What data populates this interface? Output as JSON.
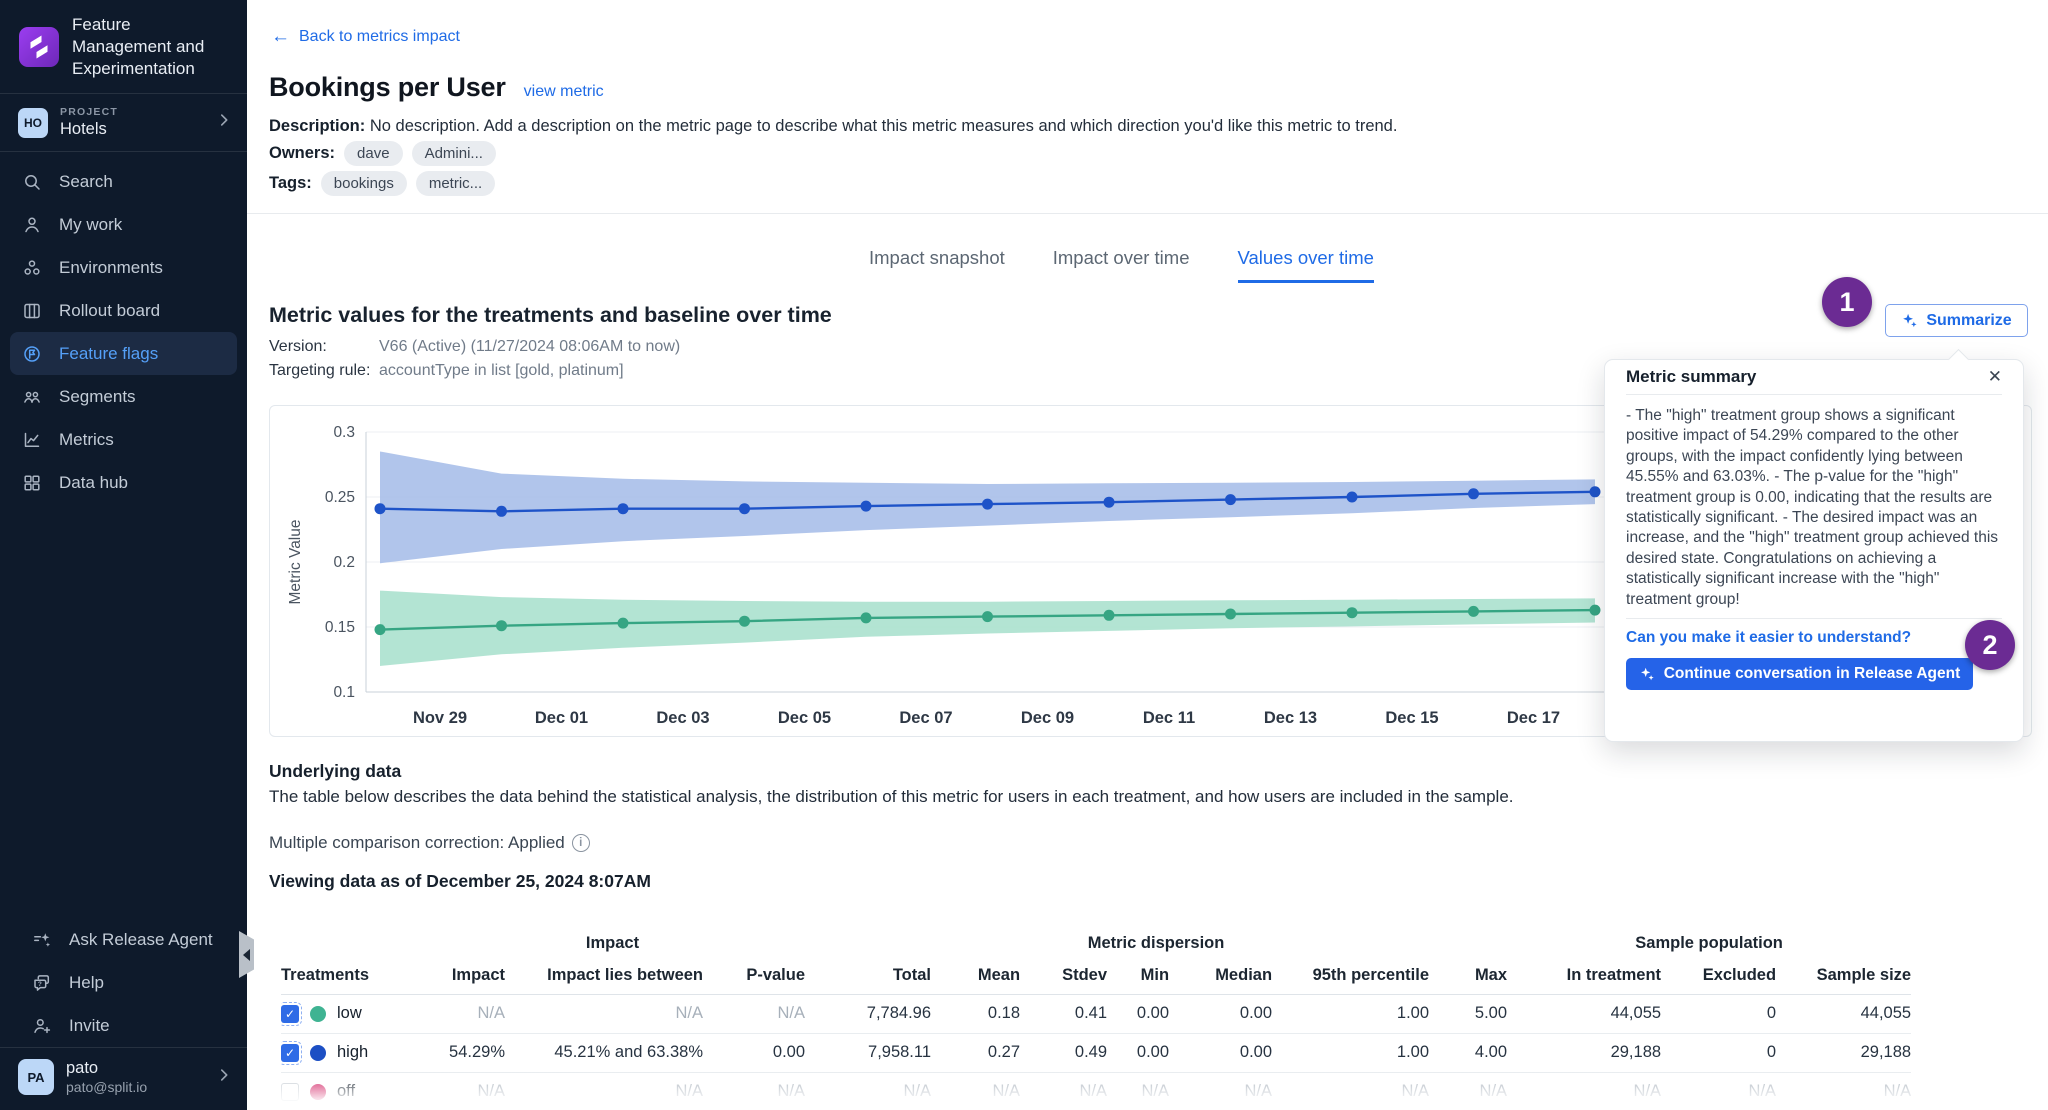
{
  "sidebar": {
    "app_title": "Feature Management and Experimentation",
    "project_label": "PROJECT",
    "project_name": "Hotels",
    "project_badge": "HO",
    "nav": [
      {
        "id": "search",
        "label": "Search",
        "icon": "search",
        "active": false
      },
      {
        "id": "my-work",
        "label": "My work",
        "icon": "my-work",
        "active": false
      },
      {
        "id": "environments",
        "label": "Environments",
        "icon": "environments",
        "active": false
      },
      {
        "id": "rollout-board",
        "label": "Rollout board",
        "icon": "rollout-board",
        "active": false
      },
      {
        "id": "feature-flags",
        "label": "Feature flags",
        "icon": "feature-flags",
        "active": true
      },
      {
        "id": "segments",
        "label": "Segments",
        "icon": "segments",
        "active": false
      },
      {
        "id": "metrics",
        "label": "Metrics",
        "icon": "metrics",
        "active": false
      },
      {
        "id": "data-hub",
        "label": "Data hub",
        "icon": "data-hub",
        "active": false
      }
    ],
    "footer_nav": [
      {
        "id": "ask-release-agent",
        "label": "Ask Release Agent",
        "icon": "ask-agent"
      },
      {
        "id": "help",
        "label": "Help",
        "icon": "help"
      },
      {
        "id": "invite",
        "label": "Invite",
        "icon": "invite"
      }
    ],
    "user": {
      "name": "pato",
      "email": "pato@split.io",
      "initials": "PA"
    }
  },
  "header": {
    "back_link": "Back to metrics impact",
    "title": "Bookings per User",
    "view_metric_link": "view metric",
    "description_label": "Description:",
    "description": "No description. Add a description on the metric page to describe what this metric measures and which direction you'd like this metric to trend.",
    "owners_label": "Owners:",
    "owners": [
      "dave",
      "Admini..."
    ],
    "tags_label": "Tags:",
    "tags": [
      "bookings",
      "metric..."
    ]
  },
  "tabs": [
    {
      "label": "Impact snapshot",
      "active": false
    },
    {
      "label": "Impact over time",
      "active": false
    },
    {
      "label": "Values over time",
      "active": true
    }
  ],
  "section": {
    "title": "Metric values for the treatments and baseline over time",
    "version_label": "Version:",
    "version_value": "V66 (Active) (11/27/2024 08:06AM to now)",
    "targeting_label": "Targeting rule:",
    "targeting_value": "accountType in list [gold, platinum]",
    "summarize_label": "Summarize"
  },
  "annotations": {
    "step1": "1",
    "step2": "2"
  },
  "chart_data": {
    "type": "line",
    "title": "Metric values for the treatments and baseline over time",
    "xlabel": "",
    "ylabel": "Metric Value",
    "ylim": [
      0.1,
      0.3
    ],
    "y_ticks": [
      0.3,
      0.25,
      0.2,
      0.15,
      0.1
    ],
    "x_tick_labels": [
      "Nov 29",
      "Dec 01",
      "Dec 03",
      "Dec 05",
      "Dec 07",
      "Dec 09",
      "Dec 11",
      "Dec 13",
      "Dec 15",
      "Dec 17"
    ],
    "x_points": [
      "Nov 28",
      "Nov 30",
      "Dec 02",
      "Dec 04",
      "Dec 06",
      "Dec 08",
      "Dec 10",
      "Dec 12",
      "Dec 14",
      "Dec 16",
      "Dec 18"
    ],
    "grid": true,
    "legend_position": "none",
    "series": [
      {
        "name": "high",
        "color": "#1e53c8",
        "band_color": "#a9bfe9",
        "values": [
          0.241,
          0.239,
          0.241,
          0.241,
          0.243,
          0.2445,
          0.246,
          0.248,
          0.25,
          0.2525,
          0.254
        ],
        "band_upper": [
          0.285,
          0.268,
          0.264,
          0.262,
          0.261,
          0.26,
          0.2605,
          0.261,
          0.2615,
          0.2625,
          0.2635
        ],
        "band_lower": [
          0.199,
          0.21,
          0.216,
          0.22,
          0.2245,
          0.228,
          0.2315,
          0.2345,
          0.2375,
          0.2415,
          0.2445
        ]
      },
      {
        "name": "low",
        "color": "#36a583",
        "band_color": "#abe1ce",
        "values": [
          0.148,
          0.151,
          0.153,
          0.1545,
          0.157,
          0.158,
          0.159,
          0.16,
          0.161,
          0.162,
          0.163
        ],
        "band_upper": [
          0.178,
          0.173,
          0.171,
          0.17,
          0.1695,
          0.1695,
          0.17,
          0.1705,
          0.171,
          0.1715,
          0.172
        ],
        "band_lower": [
          0.12,
          0.129,
          0.134,
          0.138,
          0.1425,
          0.145,
          0.147,
          0.149,
          0.1505,
          0.152,
          0.1535
        ]
      }
    ]
  },
  "underlying": {
    "title": "Underlying data",
    "description": "The table below describes the data behind the statistical analysis, the distribution of this metric for users in each treatment, and how users are included in the sample.",
    "correction_text": "Multiple comparison correction: Applied",
    "viewing_text": "Viewing data as of December 25, 2024 8:07AM"
  },
  "table": {
    "group_headers": [
      "Impact",
      "Metric dispersion",
      "Sample population"
    ],
    "columns": {
      "treatments": "Treatments",
      "impact": "Impact",
      "lies_between": "Impact lies between",
      "p_value": "P-value",
      "total": "Total",
      "mean": "Mean",
      "stdev": "Stdev",
      "min": "Min",
      "median": "Median",
      "p95": "95th percentile",
      "max": "Max",
      "in_treatment": "In treatment",
      "excluded": "Excluded",
      "sample_size": "Sample size"
    },
    "rows": [
      {
        "treatment": "low",
        "dot_color": "#3fb392",
        "checked": true,
        "impact": "N/A",
        "lies_between": "N/A",
        "p_value": "N/A",
        "total": "7,784.96",
        "mean": "0.18",
        "stdev": "0.41",
        "min": "0.00",
        "median": "0.00",
        "p95": "1.00",
        "max": "5.00",
        "in_treatment": "44,055",
        "excluded": "0",
        "sample_size": "44,055"
      },
      {
        "treatment": "high",
        "dot_color": "#1c4fc4",
        "checked": true,
        "impact": "54.29%",
        "lies_between": "45.21% and 63.38%",
        "p_value": "0.00",
        "total": "7,958.11",
        "mean": "0.27",
        "stdev": "0.49",
        "min": "0.00",
        "median": "0.00",
        "p95": "1.00",
        "max": "4.00",
        "in_treatment": "29,188",
        "excluded": "0",
        "sample_size": "29,188"
      },
      {
        "treatment": "off",
        "dot_color": "#d11a5e",
        "checked": false,
        "impact": "N/A",
        "lies_between": "N/A",
        "p_value": "N/A",
        "total": "N/A",
        "mean": "N/A",
        "stdev": "N/A",
        "min": "N/A",
        "median": "N/A",
        "p95": "N/A",
        "max": "N/A",
        "in_treatment": "N/A",
        "excluded": "N/A",
        "sample_size": "N/A"
      }
    ]
  },
  "popup": {
    "title": "Metric summary",
    "body": "- The \"high\" treatment group shows a significant positive impact of 54.29% compared to the other groups, with the impact confidently lying between 45.55% and 63.03%. - The p-value for the \"high\" treatment group is 0.00, indicating that the results are statistically significant. - The desired impact was an increase, and the \"high\" treatment group achieved this desired state. Congratulations on achieving a statistically significant increase with the \"high\" treatment group!",
    "followup_link": "Can you make it easier to understand?",
    "cta_label": "Continue conversation in Release Agent"
  },
  "colors": {
    "accent_blue": "#1f6be6",
    "cta_blue": "#2563e8",
    "badge_purple": "#6b2b93",
    "sidebar_bg": "#0e1a2b",
    "sidebar_active_bg": "#1c2b44",
    "sidebar_active_text": "#55a0f8",
    "series_high_line": "#1e53c8",
    "series_high_band": "#a9bfe9",
    "series_low_line": "#36a583",
    "series_low_band": "#abe1ce",
    "dot_off_red": "#d11a5e",
    "logo_purple": "#8b2fd6"
  }
}
